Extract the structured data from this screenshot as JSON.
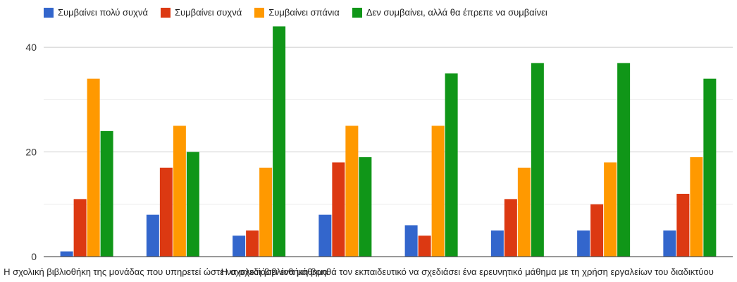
{
  "chart_data": {
    "type": "bar",
    "title": "",
    "xlabel": "",
    "ylabel": "",
    "ylim": [
      0,
      45
    ],
    "yticks": [
      0,
      20,
      40
    ],
    "grid": true,
    "legend_position": "top",
    "categories": [
      "Η σχολική βιβλιοθήκη της μονάδας που υπηρετεί ώστε να σχεδιάσει ένα μάθημα",
      "",
      "",
      "Η σχολική βιβλιοθήκη βοηθά τον εκπαιδευτικό να σχεδιάσει ένα ερευνητικό μάθημα με τη χρήση εργαλείων του διαδικτύου",
      "",
      "",
      "",
      ""
    ],
    "series": [
      {
        "name": "Συμβαίνει πολύ συχνά",
        "color": "#3366cc",
        "values": [
          1,
          8,
          4,
          8,
          6,
          5,
          5,
          5
        ]
      },
      {
        "name": "Συμβαίνει συχνά",
        "color": "#dc3912",
        "values": [
          11,
          17,
          5,
          18,
          4,
          11,
          10,
          12
        ]
      },
      {
        "name": "Συμβαίνει σπάνια",
        "color": "#ff9900",
        "values": [
          34,
          25,
          17,
          25,
          25,
          17,
          18,
          19
        ]
      },
      {
        "name": "Δεν συμβαίνει, αλλά θα έπρεπε να συμβαίνει",
        "color": "#109618",
        "values": [
          24,
          20,
          44,
          19,
          35,
          37,
          37,
          34
        ]
      }
    ],
    "label_anchor_categories": [
      1,
      4.5
    ]
  }
}
